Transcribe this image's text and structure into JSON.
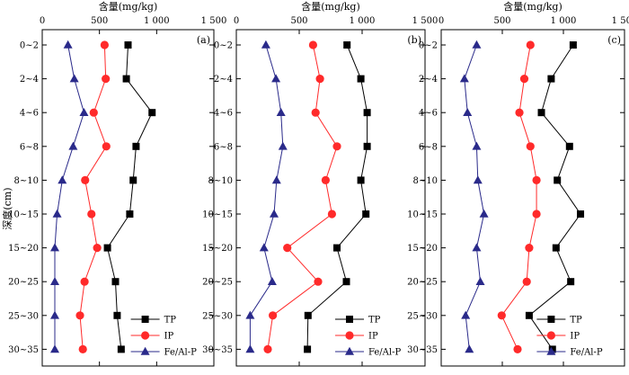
{
  "y_axis_label": "深度(cm)",
  "chart_data": [
    {
      "type": "line",
      "panel_label": "(a)",
      "xlabel": "含量(mg/kg)",
      "x_ticks": [
        "0",
        "500",
        "1 000",
        "1 500"
      ],
      "xlim": [
        0,
        1500
      ],
      "categories": [
        "0~2",
        "2~4",
        "4~6",
        "6~8",
        "8~10",
        "10~15",
        "15~20",
        "20~25",
        "25~30",
        "30~35"
      ],
      "legend_position": "bottom-right",
      "series": [
        {
          "name": "TP",
          "color": "#000000",
          "marker": "square",
          "values": [
            750,
            735,
            960,
            820,
            795,
            765,
            570,
            640,
            655,
            690
          ]
        },
        {
          "name": "IP",
          "color": "#ff2a2a",
          "marker": "circle",
          "values": [
            545,
            555,
            450,
            560,
            375,
            430,
            480,
            370,
            330,
            355
          ]
        },
        {
          "name": "Fe/Al-P",
          "color": "#2a2a8a",
          "marker": "triangle",
          "values": [
            225,
            280,
            365,
            270,
            175,
            130,
            110,
            110,
            110,
            110
          ]
        }
      ]
    },
    {
      "type": "line",
      "panel_label": "(b)",
      "xlabel": "含量(mg/kg)",
      "x_ticks": [
        "0",
        "500",
        "1 000",
        "1 500"
      ],
      "xlim": [
        0,
        1500
      ],
      "categories": [
        "0~2",
        "2~4",
        "4~6",
        "6~8",
        "8~10",
        "10~15",
        "15~20",
        "20~25",
        "25~30",
        "30~35"
      ],
      "legend_position": "bottom-right",
      "series": [
        {
          "name": "TP",
          "color": "#000000",
          "marker": "square",
          "values": [
            880,
            990,
            1040,
            1040,
            990,
            1030,
            800,
            875,
            570,
            565
          ]
        },
        {
          "name": "IP",
          "color": "#ff2a2a",
          "marker": "circle",
          "values": [
            610,
            665,
            630,
            800,
            710,
            760,
            405,
            650,
            290,
            250
          ]
        },
        {
          "name": "Fe/Al-P",
          "color": "#2a2a8a",
          "marker": "triangle",
          "values": [
            235,
            315,
            355,
            370,
            320,
            300,
            220,
            285,
            110,
            110
          ]
        }
      ]
    },
    {
      "type": "line",
      "panel_label": "(c)",
      "xlabel": "含量(mg/kg)",
      "x_ticks": [
        "0",
        "500",
        "1 000",
        "1 500"
      ],
      "xlim": [
        0,
        1500
      ],
      "categories": [
        "0~2",
        "2~4",
        "4~6",
        "6~8",
        "8~10",
        "10~15",
        "15~20",
        "20~25",
        "25~30",
        "30~35"
      ],
      "legend_position": "bottom-right",
      "series": [
        {
          "name": "TP",
          "color": "#000000",
          "marker": "square",
          "values": [
            1080,
            900,
            820,
            1050,
            950,
            1140,
            940,
            1060,
            720,
            910
          ]
        },
        {
          "name": "IP",
          "color": "#ff2a2a",
          "marker": "circle",
          "values": [
            730,
            680,
            640,
            730,
            780,
            780,
            720,
            700,
            495,
            625
          ]
        },
        {
          "name": "Fe/Al-P",
          "color": "#2a2a8a",
          "marker": "triangle",
          "values": [
            290,
            190,
            215,
            290,
            300,
            350,
            290,
            320,
            200,
            230
          ]
        }
      ]
    }
  ]
}
